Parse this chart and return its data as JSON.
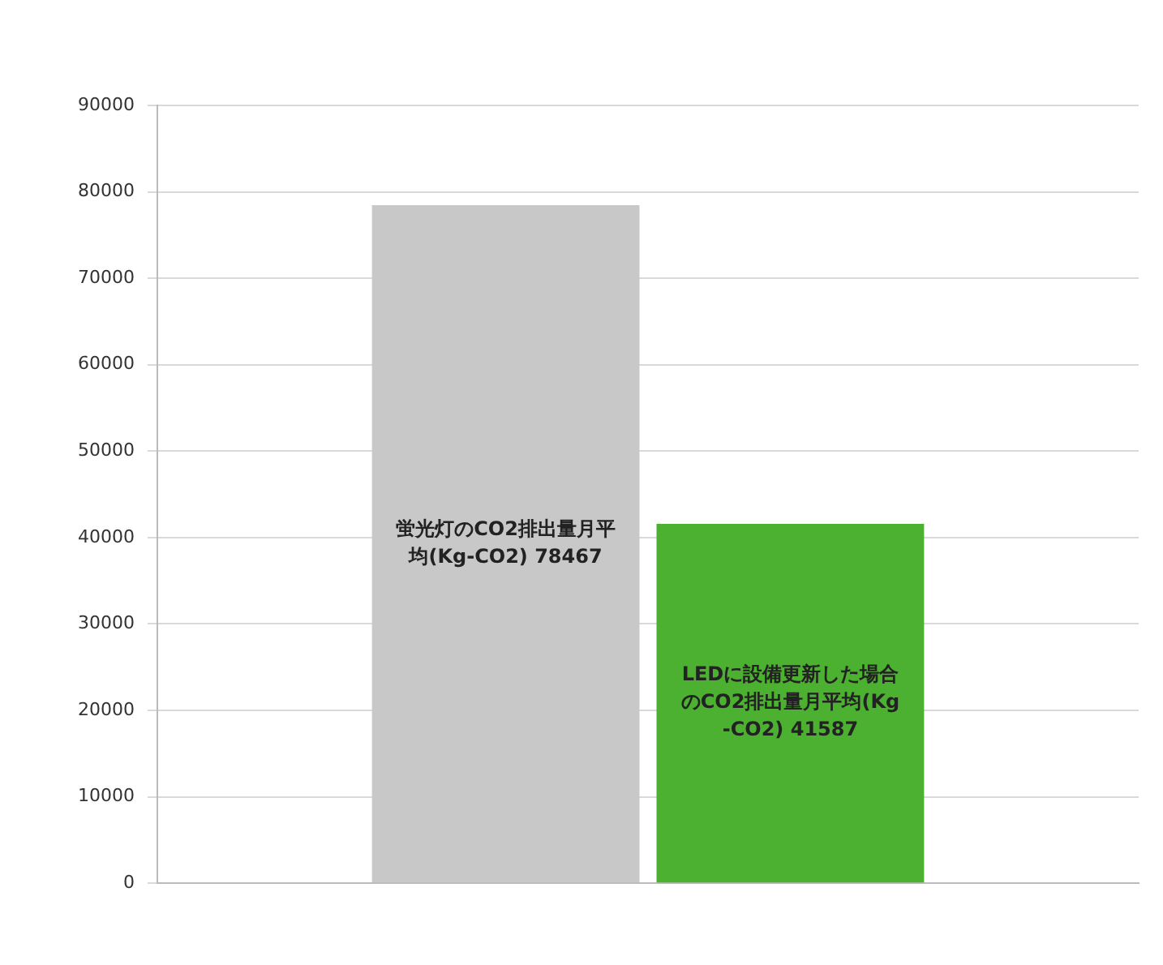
{
  "chart_data": {
    "type": "bar",
    "categories": [
      null
    ],
    "series": [
      {
        "name": "蛍光灯のCO2排出量月平均(Kg-CO2)",
        "color": "#c8c8c8",
        "values": [
          78467
        ]
      },
      {
        "name": "LEDに設備更新した場合のCO2排出量月平均(Kg-CO2)",
        "color": "#4cb030",
        "values": [
          41587
        ]
      }
    ],
    "ylim": [
      0,
      90000
    ],
    "yticks": [
      0,
      10000,
      20000,
      30000,
      40000,
      50000,
      60000,
      70000,
      80000,
      90000
    ],
    "grid": "y",
    "legend": false,
    "data_labels": true
  }
}
